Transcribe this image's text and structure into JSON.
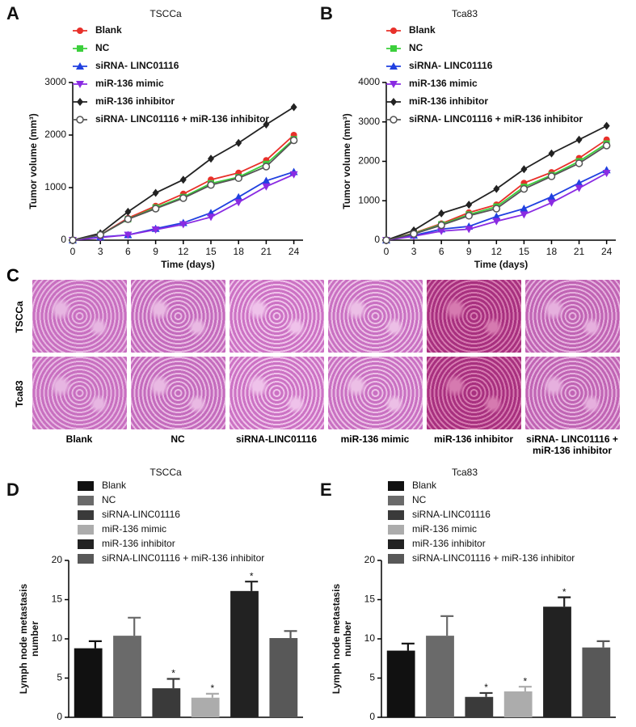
{
  "chart_data": [
    {
      "type": "line",
      "panel": "A",
      "title": "TSCCa",
      "x_label": "Time (days)",
      "y_label": "Tumor volume (mm³)",
      "x": [
        0,
        3,
        6,
        9,
        12,
        15,
        18,
        21,
        24
      ],
      "xlim": [
        0,
        25
      ],
      "xticks": [
        0,
        3,
        6,
        9,
        12,
        15,
        18,
        21,
        24
      ],
      "ylim": [
        0,
        3000
      ],
      "yticks": [
        0,
        1000,
        2000,
        3000
      ],
      "series": [
        {
          "name": "Blank",
          "color": "#e8302a",
          "marker": "circle",
          "values": [
            0,
            100,
            420,
            650,
            880,
            1150,
            1280,
            1520,
            2000
          ]
        },
        {
          "name": "NC",
          "color": "#3ccf3c",
          "marker": "square",
          "values": [
            0,
            100,
            400,
            620,
            820,
            1080,
            1200,
            1450,
            1920
          ]
        },
        {
          "name": "siRNA- LINC01116",
          "color": "#2040e0",
          "marker": "triangle",
          "values": [
            0,
            60,
            100,
            220,
            330,
            520,
            820,
            1130,
            1300
          ]
        },
        {
          "name": "miR-136 mimic",
          "color": "#8a2be2",
          "marker": "triangle-down",
          "values": [
            0,
            50,
            100,
            200,
            300,
            440,
            720,
            1020,
            1250
          ]
        },
        {
          "name": "miR-136 inhibitor",
          "color": "#222222",
          "marker": "diamond",
          "values": [
            0,
            130,
            540,
            900,
            1150,
            1550,
            1850,
            2200,
            2530
          ]
        },
        {
          "name": "siRNA- LINC01116 + miR-136 inhibitor",
          "color": "#555555",
          "marker": "open-circle",
          "values": [
            0,
            100,
            400,
            600,
            800,
            1050,
            1180,
            1400,
            1900
          ]
        }
      ]
    },
    {
      "type": "line",
      "panel": "B",
      "title": "Tca83",
      "x_label": "Time (days)",
      "y_label": "Tumor volume (mm³)",
      "x": [
        0,
        3,
        6,
        9,
        12,
        15,
        18,
        21,
        24
      ],
      "xlim": [
        0,
        25
      ],
      "xticks": [
        0,
        3,
        6,
        9,
        12,
        15,
        18,
        21,
        24
      ],
      "ylim": [
        0,
        4000
      ],
      "yticks": [
        0,
        1000,
        2000,
        3000,
        4000
      ],
      "series": [
        {
          "name": "Blank",
          "color": "#e8302a",
          "marker": "circle",
          "values": [
            0,
            180,
            420,
            700,
            900,
            1450,
            1720,
            2080,
            2550
          ]
        },
        {
          "name": "NC",
          "color": "#3ccf3c",
          "marker": "square",
          "values": [
            0,
            170,
            400,
            650,
            850,
            1350,
            1650,
            2000,
            2450
          ]
        },
        {
          "name": "siRNA- LINC01116",
          "color": "#2040e0",
          "marker": "triangle",
          "values": [
            0,
            120,
            280,
            350,
            600,
            800,
            1100,
            1450,
            1780
          ]
        },
        {
          "name": "miR-136 mimic",
          "color": "#8a2be2",
          "marker": "triangle-down",
          "values": [
            0,
            100,
            230,
            280,
            480,
            650,
            950,
            1320,
            1700
          ]
        },
        {
          "name": "miR-136 inhibitor",
          "color": "#222222",
          "marker": "diamond",
          "values": [
            0,
            250,
            680,
            900,
            1300,
            1800,
            2200,
            2550,
            2900
          ]
        },
        {
          "name": "siRNA- LINC01116 + miR-136 inhibitor",
          "color": "#555555",
          "marker": "open-circle",
          "values": [
            0,
            160,
            380,
            620,
            800,
            1300,
            1620,
            1950,
            2400
          ]
        }
      ]
    },
    {
      "type": "bar",
      "panel": "D",
      "title": "TSCCa",
      "y_label": [
        "Lymph node metastasis",
        "number"
      ],
      "categories": [
        "Blank",
        "NC",
        "siRNA-LINC01116",
        "miR-136 mimic",
        "miR-136 inhibitor",
        "siRNA-LINC01116 + miR-136 inhibitor"
      ],
      "colors": [
        "#111111",
        "#6a6a6a",
        "#3a3a3a",
        "#acacac",
        "#222222",
        "#585858"
      ],
      "values": [
        8.8,
        10.4,
        3.7,
        2.5,
        16.1,
        10.1
      ],
      "errors": [
        0.9,
        2.3,
        1.2,
        0.5,
        1.2,
        0.9
      ],
      "ylim": [
        0,
        20
      ],
      "yticks": [
        0,
        5,
        10,
        15,
        20
      ],
      "annotations": [
        {
          "index": 2,
          "text": "*"
        },
        {
          "index": 3,
          "text": "*"
        },
        {
          "index": 4,
          "text": "*"
        }
      ]
    },
    {
      "type": "bar",
      "panel": "E",
      "title": "Tca83",
      "y_label": [
        "Lymph node metastasis",
        "number"
      ],
      "categories": [
        "Blank",
        "NC",
        "siRNA-LINC01116",
        "miR-136 mimic",
        "miR-136 inhibitor",
        "siRNA-LINC01116 + miR-136 inhibitor"
      ],
      "colors": [
        "#111111",
        "#6a6a6a",
        "#3a3a3a",
        "#acacac",
        "#222222",
        "#585858"
      ],
      "values": [
        8.5,
        10.4,
        2.6,
        3.3,
        14.1,
        8.9
      ],
      "errors": [
        0.9,
        2.5,
        0.5,
        0.6,
        1.2,
        0.8
      ],
      "ylim": [
        0,
        20
      ],
      "yticks": [
        0,
        5,
        10,
        15,
        20
      ],
      "annotations": [
        {
          "index": 2,
          "text": "*"
        },
        {
          "index": 3,
          "text": "*"
        },
        {
          "index": 4,
          "text": "*"
        }
      ]
    }
  ],
  "histology": {
    "panel": "C",
    "rows": [
      "TSCCa",
      "Tca83"
    ],
    "columns": [
      "Blank",
      "NC",
      "siRNA-LINC01116",
      "miR-136 mimic",
      "miR-136 inhibitor",
      "siRNA- LINC01116 + miR-136 inhibitor"
    ]
  }
}
